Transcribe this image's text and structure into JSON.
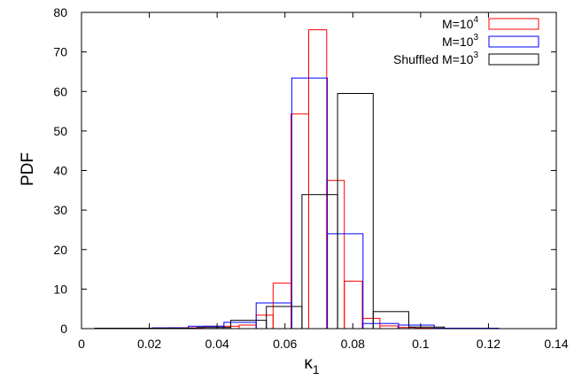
{
  "chart_data": {
    "type": "bar",
    "xlabel": "κ",
    "xlabel_sub": "1",
    "ylabel": "PDF",
    "xlim": [
      0,
      0.14
    ],
    "ylim": [
      0,
      80
    ],
    "x_ticks": [
      0,
      0.02,
      0.04,
      0.06,
      0.08,
      0.1,
      0.12,
      0.14
    ],
    "x_tick_labels": [
      "0",
      "0.02",
      "0.04",
      "0.06",
      "0.08",
      "0.1",
      "0.12",
      "0.14"
    ],
    "y_ticks": [
      0,
      10,
      20,
      30,
      40,
      50,
      60,
      70,
      80
    ],
    "y_tick_labels": [
      "0",
      "10",
      "20",
      "30",
      "40",
      "50",
      "60",
      "70",
      "80"
    ],
    "grid": false,
    "legend_position": "top-right",
    "series": [
      {
        "name": "M=10",
        "name_sup": "4",
        "color": "#ff0000",
        "bins": [
          {
            "x0": 0.0045,
            "x1": 0.015,
            "y": 0.05
          },
          {
            "x0": 0.015,
            "x1": 0.0255,
            "y": 0.1
          },
          {
            "x0": 0.0255,
            "x1": 0.036,
            "y": 0.2
          },
          {
            "x0": 0.036,
            "x1": 0.0465,
            "y": 0.6
          },
          {
            "x0": 0.0465,
            "x1": 0.0515,
            "y": 0.9
          },
          {
            "x0": 0.0515,
            "x1": 0.0565,
            "y": 3.4
          },
          {
            "x0": 0.0565,
            "x1": 0.0618,
            "y": 11.5
          },
          {
            "x0": 0.0618,
            "x1": 0.067,
            "y": 54.3
          },
          {
            "x0": 0.067,
            "x1": 0.0723,
            "y": 75.6
          },
          {
            "x0": 0.0723,
            "x1": 0.0775,
            "y": 37.5
          },
          {
            "x0": 0.0775,
            "x1": 0.0828,
            "y": 12.0
          },
          {
            "x0": 0.0828,
            "x1": 0.088,
            "y": 2.6
          },
          {
            "x0": 0.088,
            "x1": 0.0933,
            "y": 0.7
          },
          {
            "x0": 0.0933,
            "x1": 0.0985,
            "y": 0.3
          },
          {
            "x0": 0.0985,
            "x1": 0.11,
            "y": 0.1
          }
        ]
      },
      {
        "name": "M=10",
        "name_sup": "3",
        "color": "#0000ff",
        "bins": [
          {
            "x0": 0.004,
            "x1": 0.0115,
            "y": 0.05
          },
          {
            "x0": 0.0115,
            "x1": 0.021,
            "y": 0.1
          },
          {
            "x0": 0.021,
            "x1": 0.0315,
            "y": 0.2
          },
          {
            "x0": 0.0315,
            "x1": 0.042,
            "y": 0.6
          },
          {
            "x0": 0.042,
            "x1": 0.0515,
            "y": 1.6
          },
          {
            "x0": 0.0515,
            "x1": 0.062,
            "y": 6.5
          },
          {
            "x0": 0.062,
            "x1": 0.0725,
            "y": 63.4
          },
          {
            "x0": 0.0725,
            "x1": 0.083,
            "y": 24.0
          },
          {
            "x0": 0.083,
            "x1": 0.0935,
            "y": 1.3
          },
          {
            "x0": 0.0935,
            "x1": 0.104,
            "y": 0.9
          },
          {
            "x0": 0.104,
            "x1": 0.123,
            "y": 0.1
          }
        ]
      },
      {
        "name": "Shuffled M=10",
        "name_sup": "3",
        "color": "#000000",
        "bins": [
          {
            "x0": 0.004,
            "x1": 0.017,
            "y": 0.05
          },
          {
            "x0": 0.017,
            "x1": 0.034,
            "y": 0.1
          },
          {
            "x0": 0.034,
            "x1": 0.044,
            "y": 0.3
          },
          {
            "x0": 0.044,
            "x1": 0.0545,
            "y": 2.1
          },
          {
            "x0": 0.0545,
            "x1": 0.065,
            "y": 5.6
          },
          {
            "x0": 0.065,
            "x1": 0.0755,
            "y": 33.9
          },
          {
            "x0": 0.0755,
            "x1": 0.086,
            "y": 59.5
          },
          {
            "x0": 0.086,
            "x1": 0.0965,
            "y": 4.3
          },
          {
            "x0": 0.0965,
            "x1": 0.107,
            "y": 0.4
          }
        ]
      }
    ]
  }
}
